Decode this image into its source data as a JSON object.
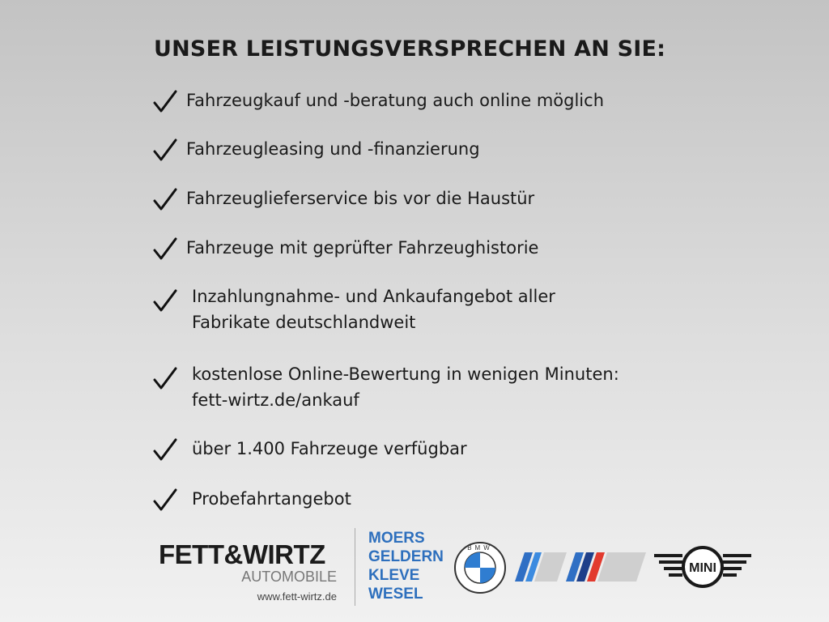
{
  "title": "UNSER LEISTUNGSVERSPRECHEN AN SIE:",
  "items": [
    {
      "lines": [
        "Fahrzeugkauf und -beratung auch online möglich"
      ]
    },
    {
      "lines": [
        "Fahrzeugleasing und -finanzierung"
      ]
    },
    {
      "lines": [
        "Fahrzeuglieferservice bis vor die Haustür"
      ]
    },
    {
      "lines": [
        "Fahrzeuge mit geprüfter Fahrzeughistorie"
      ]
    },
    {
      "lines": [
        "Inzahlungnahme- und Ankaufangebot aller",
        "Fabrikate deutschlandweit"
      ]
    },
    {
      "lines": [
        "kostenlose Online-Bewertung in wenigen Minuten:",
        "fett-wirtz.de/ankauf"
      ]
    },
    {
      "lines": [
        "über 1.400 Fahrzeuge verfügbar"
      ]
    },
    {
      "lines": [
        "Probefahrtangebot"
      ]
    }
  ],
  "icons": {
    "bullet": "checkmark-icon"
  },
  "footer": {
    "brand": "FETT&WIRTZ",
    "brand_sub": "AUTOMOBILE",
    "website": "www.fett-wirtz.de",
    "cities": [
      "MOERS",
      "GELDERN",
      "KLEVE",
      "WESEL"
    ],
    "bmw_letters": "BMW",
    "mini_label": "MINI",
    "city_color": "#2d6fbd"
  }
}
